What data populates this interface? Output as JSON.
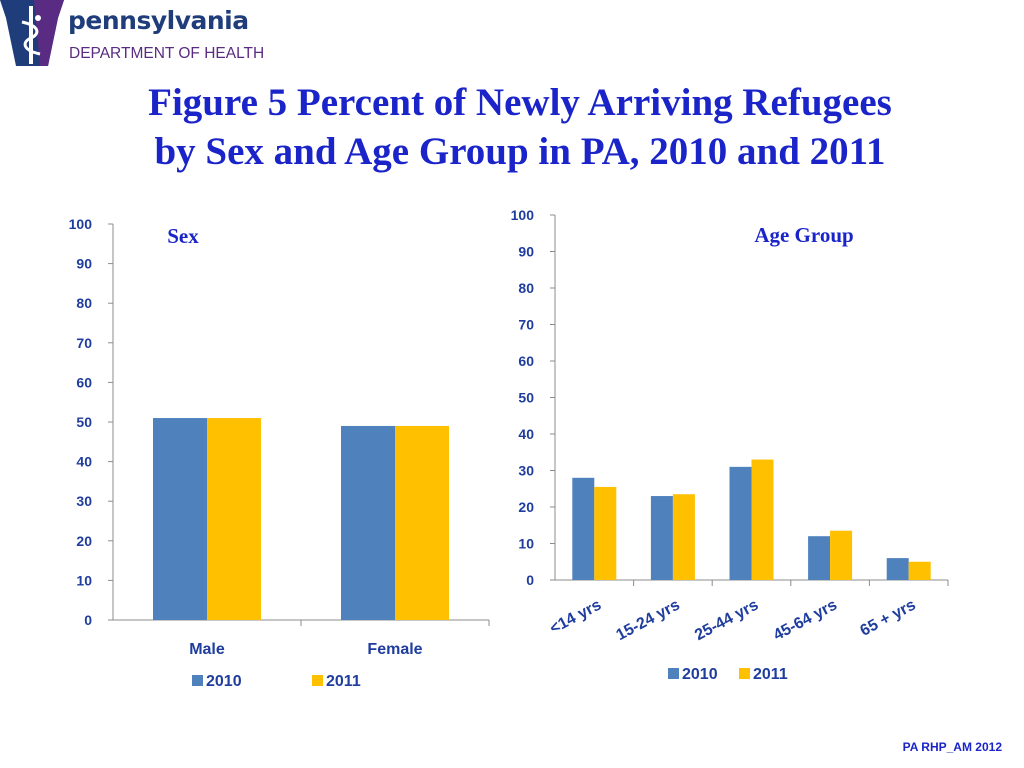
{
  "header": {
    "logo_name": "pennsylvania",
    "logo_dept": "DEPARTMENT OF HEALTH",
    "title_line1": "Figure 5 Percent of Newly Arriving Refugees",
    "title_line2": "by Sex and Age Group in PA, 2010 and 2011"
  },
  "footer": {
    "text": "PA RHP_AM 2012"
  },
  "colors": {
    "series_2010": "#4f81bd",
    "series_2011": "#ffc000",
    "title": "#1a24c8",
    "axis_text": "#1f3d9e"
  },
  "chart_data": [
    {
      "type": "bar",
      "title": "Sex",
      "categories": [
        "Male",
        "Female"
      ],
      "series": [
        {
          "name": "2010",
          "values": [
            51,
            49
          ]
        },
        {
          "name": "2011",
          "values": [
            51,
            49
          ]
        }
      ],
      "yticks": [
        "0",
        "10",
        "20",
        "30",
        "40",
        "50",
        "60",
        "70",
        "80",
        "90",
        "100"
      ],
      "ylim": [
        0,
        100
      ],
      "legend": "bottom"
    },
    {
      "type": "bar",
      "title": "Age Group",
      "categories": [
        "<14 yrs",
        "15-24 yrs",
        "25-44 yrs",
        "45-64 yrs",
        "65 + yrs"
      ],
      "series": [
        {
          "name": "2010",
          "values": [
            28,
            23,
            31,
            12,
            6
          ]
        },
        {
          "name": "2011",
          "values": [
            25.5,
            23.5,
            33,
            13.5,
            5
          ]
        }
      ],
      "yticks": [
        "0",
        "10",
        "20",
        "30",
        "40",
        "50",
        "60",
        "70",
        "80",
        "90",
        "100"
      ],
      "ylim": [
        0,
        100
      ],
      "legend": "bottom"
    }
  ]
}
